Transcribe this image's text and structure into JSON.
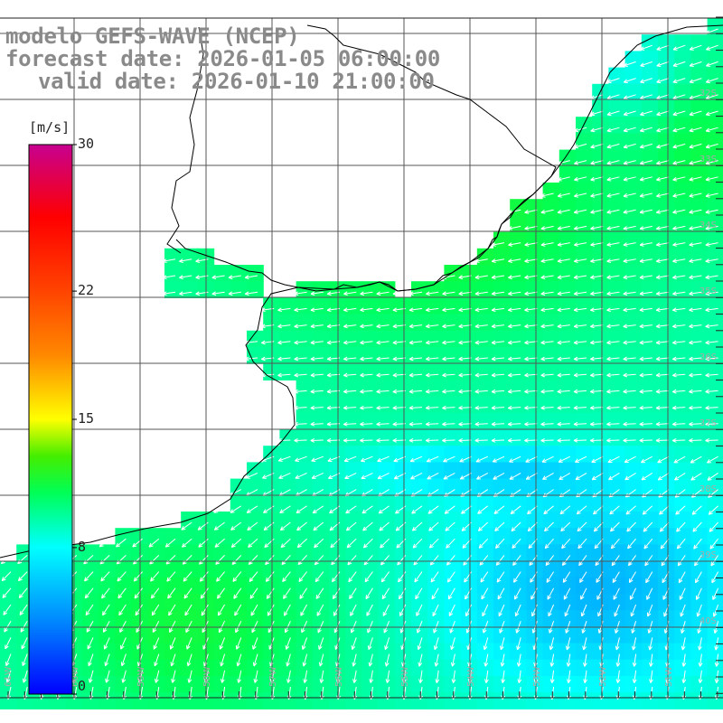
{
  "title": {
    "line1": "modelo GEFS-WAVE (NCEP)",
    "line2": "forecast date: 2026-01-05 06:00:00",
    "line3": "valid date: 2026-01-10 21:00:00"
  },
  "colorbar": {
    "unit": "[m/s]",
    "ticks": [
      "30",
      "22",
      "15",
      "8",
      "0"
    ],
    "tick_values": [
      30,
      22,
      15,
      8,
      0
    ],
    "min": 0,
    "max": 30,
    "stops": [
      {
        "v": 0,
        "c": "#0000ff"
      },
      {
        "v": 4,
        "c": "#0088ff"
      },
      {
        "v": 8,
        "c": "#00ffff"
      },
      {
        "v": 11,
        "c": "#00ff55"
      },
      {
        "v": 13,
        "c": "#44ee00"
      },
      {
        "v": 15,
        "c": "#ffff00"
      },
      {
        "v": 18.5,
        "c": "#ff8800"
      },
      {
        "v": 22,
        "c": "#ff4400"
      },
      {
        "v": 26,
        "c": "#ff0000"
      },
      {
        "v": 30,
        "c": "#c80090"
      }
    ]
  },
  "lon_labels": [
    "61W",
    "60W",
    "59W",
    "58W",
    "57W",
    "56W",
    "55W",
    "54W",
    "53W",
    "52W",
    "51W"
  ],
  "lat_labels": [
    "32S",
    "33S",
    "34S",
    "35S",
    "36S",
    "37S",
    "38S",
    "39S",
    "40S"
  ],
  "colors": {
    "land": "#ffffff",
    "coast": "#000000",
    "grid": "#555555",
    "arrow": "#ffffff",
    "title": "#8a8a8a"
  }
}
